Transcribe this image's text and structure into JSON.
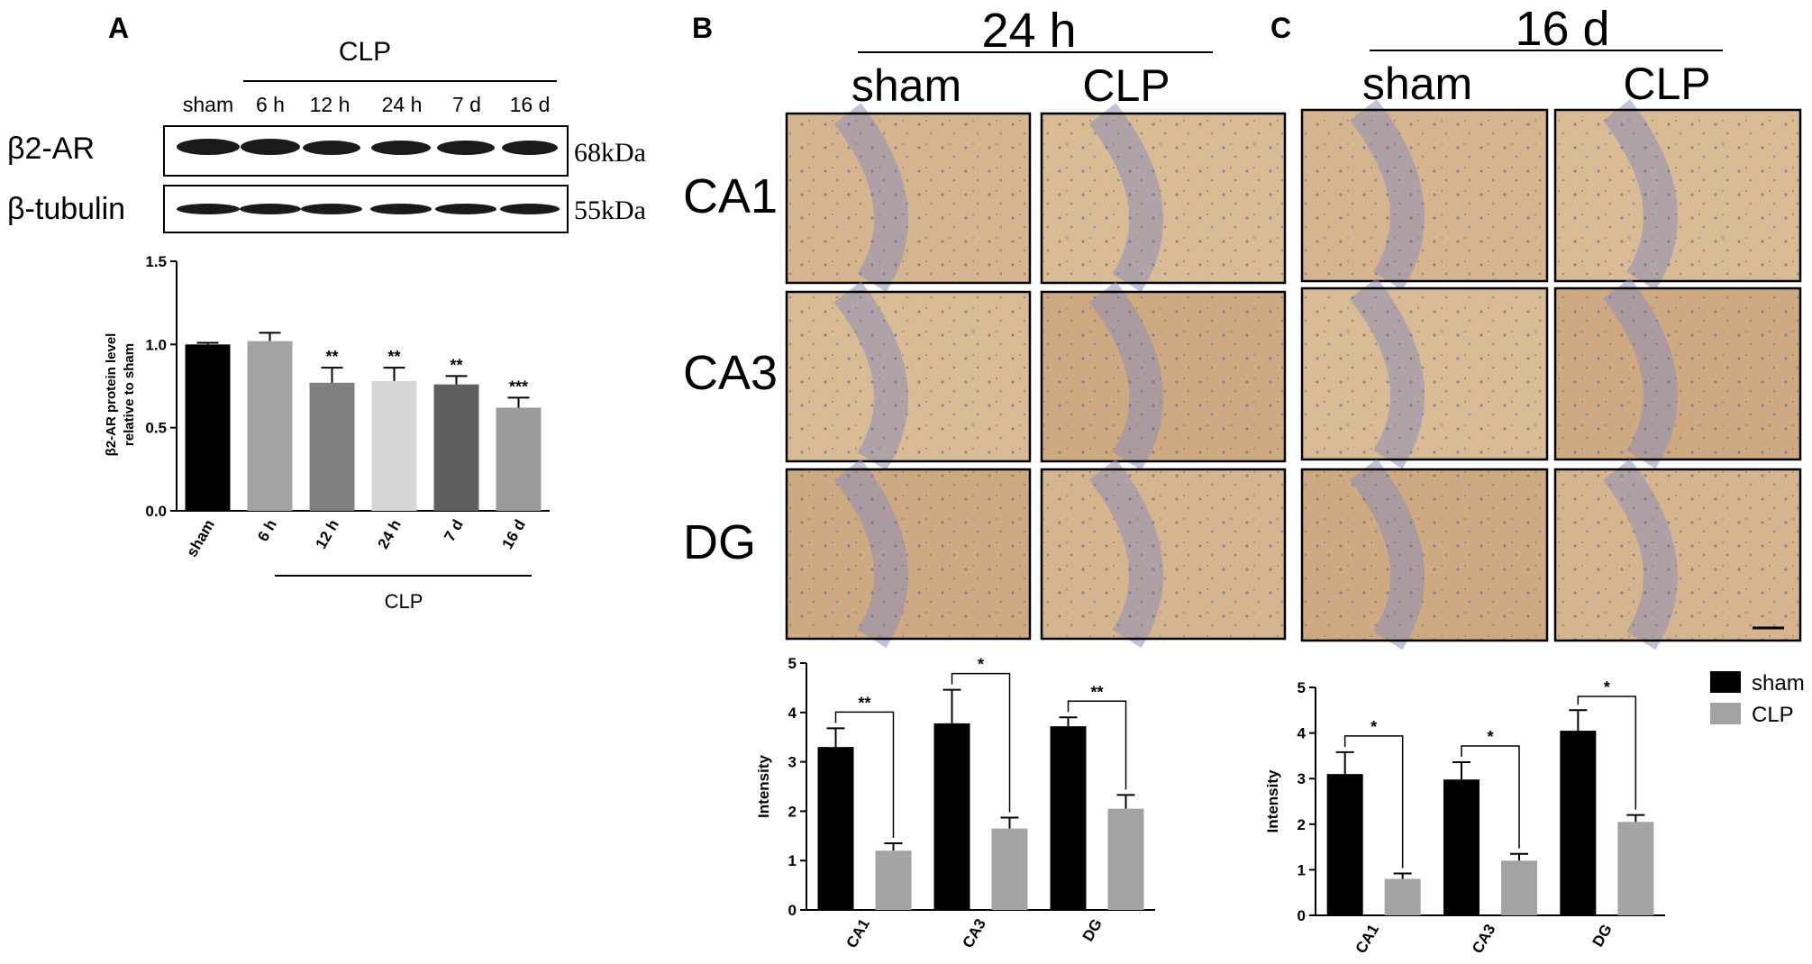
{
  "panel_labels": {
    "a": "A",
    "b": "B",
    "c": "C"
  },
  "panel_a": {
    "clp_header": "CLP",
    "lanes": [
      "sham",
      "6 h",
      "12 h",
      "24 h",
      "7 d",
      "16 d"
    ],
    "blot_rows": [
      {
        "protein": "β2-AR",
        "size": "68kDa"
      },
      {
        "protein": "β-tubulin",
        "size": "55kDa"
      }
    ],
    "clp_footer": "CLP"
  },
  "panel_b": {
    "time": "24 h",
    "columns": [
      "sham",
      "CLP"
    ],
    "rows": [
      "CA1",
      "CA3",
      "DG"
    ]
  },
  "panel_c": {
    "time": "16 d",
    "columns": [
      "sham",
      "CLP"
    ],
    "rows": [
      "CA1",
      "CA3",
      "DG"
    ]
  },
  "legend": {
    "items": [
      {
        "label": "sham",
        "color": "#000000"
      },
      {
        "label": "CLP",
        "color": "#a3a3a3"
      }
    ]
  },
  "chart_data": [
    {
      "id": "chartA",
      "type": "bar",
      "ylabel": "β2-AR protein level relative to sham",
      "ylabel_lines": [
        "β2-AR protein level",
        "relative to sham"
      ],
      "ylim": [
        0,
        1.5
      ],
      "yticks": [
        "0.0",
        "0.5",
        "1.0",
        "1.5"
      ],
      "categories": [
        "sham",
        "6 h",
        "12 h",
        "24 h",
        "7 d",
        "16 d"
      ],
      "values": [
        1.0,
        1.02,
        0.77,
        0.78,
        0.76,
        0.62
      ],
      "errors": [
        0.01,
        0.05,
        0.09,
        0.08,
        0.05,
        0.06
      ],
      "colors": [
        "#000000",
        "#a3a3a3",
        "#808080",
        "#d6d6d6",
        "#5f5f5f",
        "#9a9a9a"
      ],
      "significance": [
        "",
        "",
        "**",
        "**",
        "**",
        "***"
      ]
    },
    {
      "id": "chartB",
      "type": "bar",
      "ylabel": "Intensity",
      "ylim": [
        0,
        5
      ],
      "yticks": [
        "0",
        "1",
        "2",
        "3",
        "4",
        "5"
      ],
      "categories": [
        "CA1",
        "CA3",
        "DG"
      ],
      "series": [
        {
          "values": [
            3.3,
            3.78,
            3.72
          ],
          "errors": [
            0.38,
            0.68,
            0.18
          ],
          "color": "#000000"
        },
        {
          "values": [
            1.2,
            1.65,
            2.05
          ],
          "errors": [
            0.15,
            0.22,
            0.28
          ],
          "color": "#a3a3a3"
        }
      ],
      "significance": [
        "**",
        "*",
        "**"
      ]
    },
    {
      "id": "chartC",
      "type": "bar",
      "ylabel": "Intensity",
      "ylim": [
        0,
        5
      ],
      "yticks": [
        "0",
        "1",
        "2",
        "3",
        "4",
        "5"
      ],
      "categories": [
        "CA1",
        "CA3",
        "DG"
      ],
      "series": [
        {
          "values": [
            3.1,
            2.98,
            4.05
          ],
          "errors": [
            0.48,
            0.38,
            0.45
          ],
          "color": "#000000"
        },
        {
          "values": [
            0.8,
            1.2,
            2.05
          ],
          "errors": [
            0.12,
            0.15,
            0.15
          ],
          "color": "#a3a3a3"
        }
      ],
      "significance": [
        "*",
        "*",
        "*"
      ]
    }
  ]
}
